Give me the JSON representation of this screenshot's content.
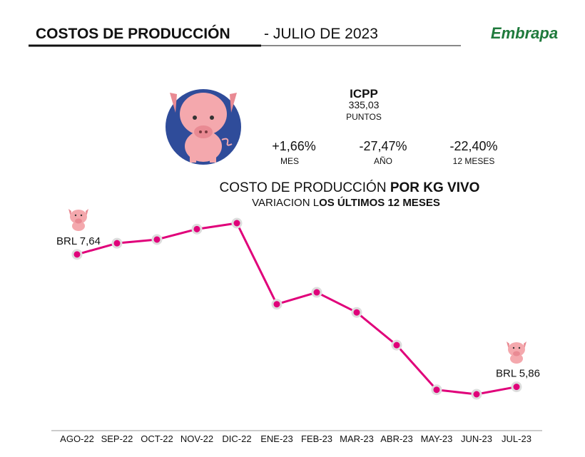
{
  "header": {
    "title_bold": "COSTOS DE PRODUCCIÓN",
    "title_rest": "- JULIO DE 2023",
    "logo": "Embrapa"
  },
  "indicator": {
    "name": "ICPP",
    "value": "335,03",
    "unit": "PUNTOS",
    "changes": [
      {
        "value": "+1,66%",
        "label": "MES"
      },
      {
        "value": "-27,47%",
        "label": "AÑO"
      },
      {
        "value": "-22,40%",
        "label": "12 MESES"
      }
    ]
  },
  "chart_data": {
    "type": "line",
    "title": [
      "COSTO DE PRODUCCIÓN",
      "POR KG VIVO"
    ],
    "subtitle": [
      "VARIACION L",
      "OS ÚLTIMOS 12 MESES"
    ],
    "categories": [
      "AGO-22",
      "SEP-22",
      "OCT-22",
      "NOV-22",
      "DIC-22",
      "ENE-23",
      "FEB-23",
      "MAR-23",
      "ABR-23",
      "MAY-23",
      "JUN-23",
      "JUL-23"
    ],
    "values": [
      7.64,
      7.79,
      7.84,
      7.98,
      8.06,
      6.97,
      7.13,
      6.86,
      6.42,
      5.82,
      5.76,
      5.86
    ],
    "value_labels": [
      "BRL 7,64",
      null,
      null,
      null,
      null,
      null,
      null,
      null,
      null,
      null,
      null,
      "BRL 5,86"
    ],
    "color": "#e0007a"
  }
}
